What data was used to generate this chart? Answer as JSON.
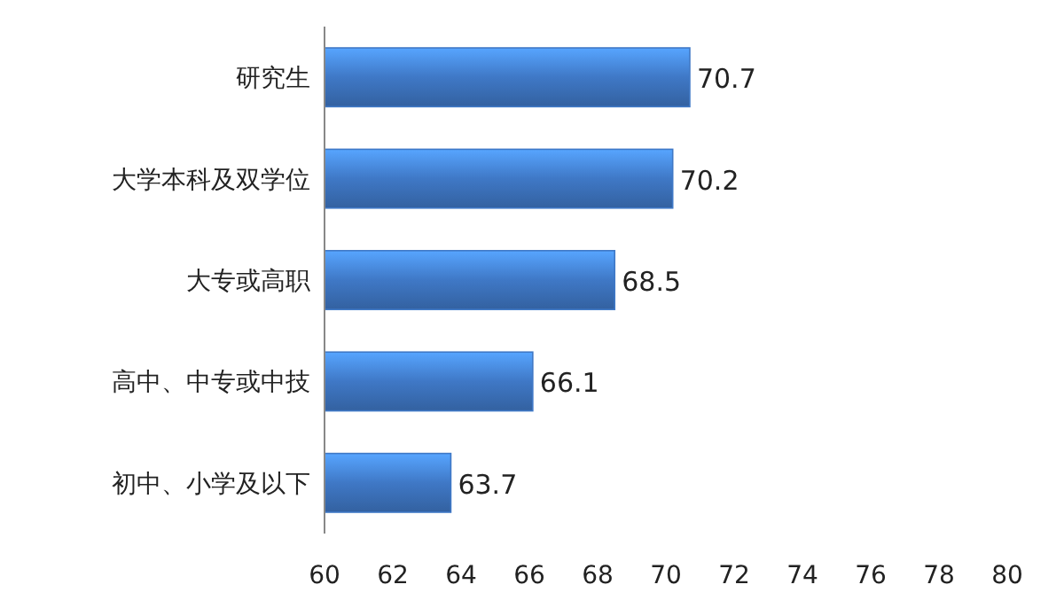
{
  "chart_data": {
    "type": "bar",
    "orientation": "horizontal",
    "categories": [
      "研究生",
      "大学本科及双学位",
      "大专或高职",
      "高中、中专或中技",
      "初中、小学及以下"
    ],
    "values": [
      70.7,
      70.2,
      68.5,
      66.1,
      63.7
    ],
    "color": "#3f78c6",
    "xlim": [
      60,
      80
    ],
    "xticks": [
      60,
      62,
      64,
      66,
      68,
      70,
      72,
      74,
      76,
      78,
      80
    ],
    "data_labels": true,
    "grid": false
  }
}
